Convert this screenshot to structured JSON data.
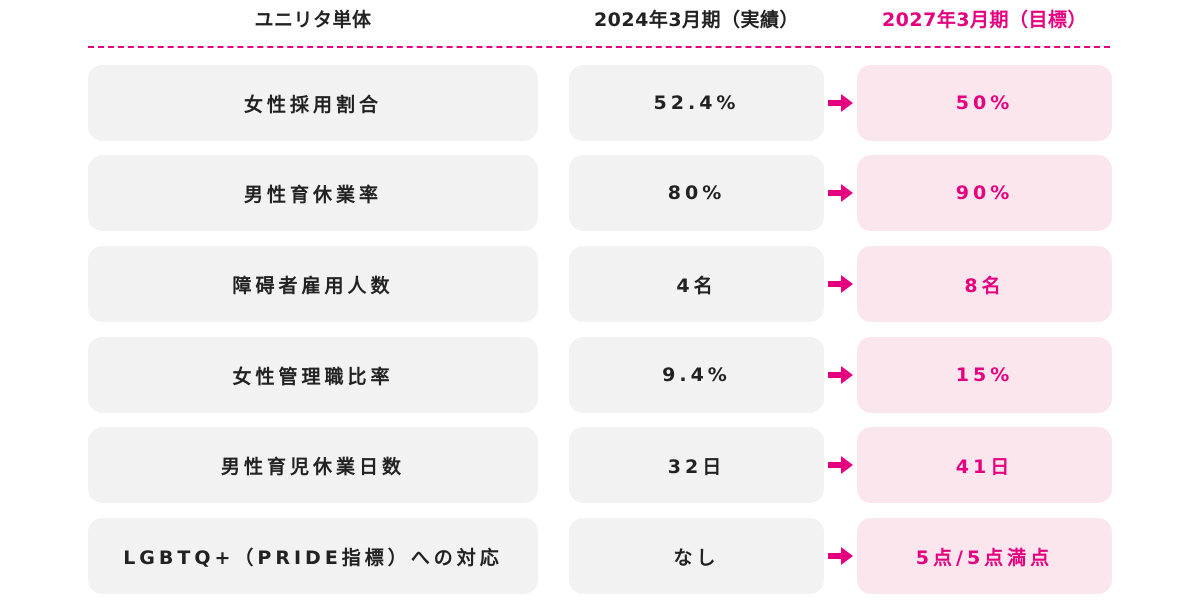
{
  "header": {
    "col1": "ユニリタ単体",
    "col2": "2024年3月期（実績）",
    "col3": "2027年3月期（目標）"
  },
  "colors": {
    "accent": "#e5007f",
    "cell_bg": "#f2f2f2",
    "target_bg": "#fbe6ee",
    "text": "#222222"
  },
  "rows": [
    {
      "label": "女性採用割合",
      "actual": "52.4%",
      "target": "50%"
    },
    {
      "label": "男性育休業率",
      "actual": "80%",
      "target": "90%"
    },
    {
      "label": "障碍者雇用人数",
      "actual": "4名",
      "target": "8名"
    },
    {
      "label": "女性管理職比率",
      "actual": "9.4%",
      "target": "15%"
    },
    {
      "label": "男性育児休業日数",
      "actual": "32日",
      "target": "41日"
    },
    {
      "label": "LGBTQ+（PRIDE指標）への対応",
      "actual": "なし",
      "target": "5点/5点満点"
    }
  ]
}
